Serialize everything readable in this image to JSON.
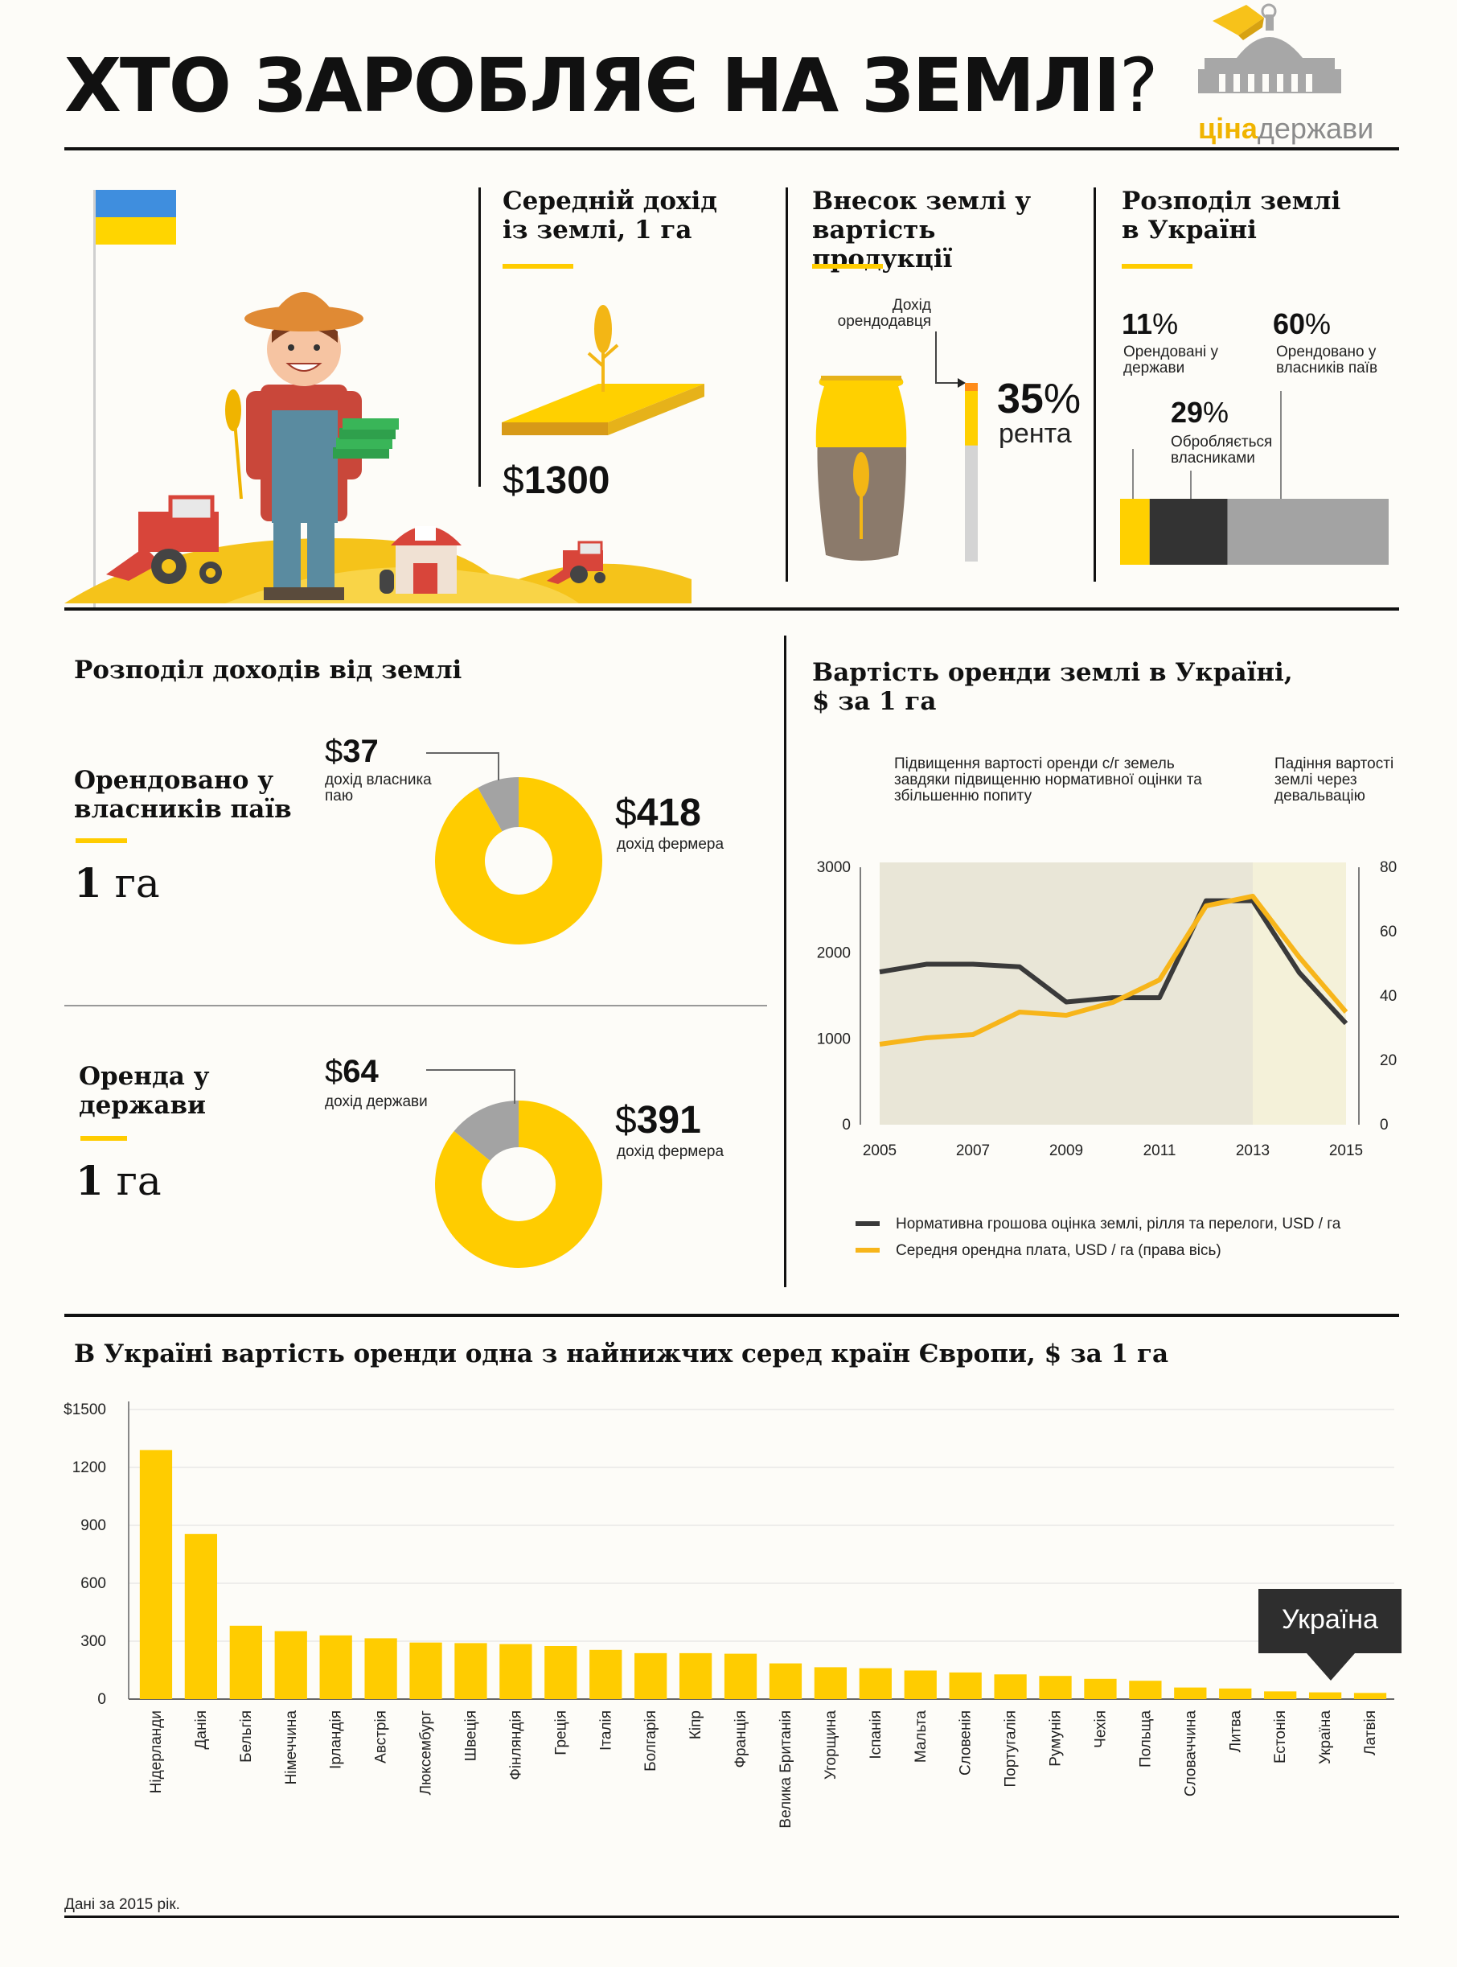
{
  "header": {
    "title_main": "ХТО ЗАРОБЛЯЄ НА ЗЕМЛІ",
    "title_q": "?",
    "logo_bold": "ціна",
    "logo_light": "держави"
  },
  "avg_income": {
    "title": "Середній дохід із землі, 1 га",
    "value_currency": "$",
    "value_number": "1300"
  },
  "land_share": {
    "title": "Внесок землі у вартість продукції",
    "caption": "Дохід орендодавця",
    "percent_number": "35",
    "percent_sign": "%",
    "percent_label": "рента",
    "value": 35
  },
  "land_distribution": {
    "title": "Розподіл землі в Україні",
    "items": [
      {
        "number": "11",
        "sign": "%",
        "label": "Орендовані у держави",
        "value": 11,
        "color": "#ffd000"
      },
      {
        "number": "29",
        "sign": "%",
        "label": "Обробляється власниками",
        "value": 29,
        "color": "#333333"
      },
      {
        "number": "60",
        "sign": "%",
        "label": "Орендовано у власників паїв",
        "value": 60,
        "color": "#a3a3a3"
      }
    ]
  },
  "income_split": {
    "title": "Розподіл доходів від землі",
    "blocks": [
      {
        "heading": "Орендовано у власників паїв",
        "area_number": "1",
        "area_unit": "га",
        "small_currency": "$",
        "small_number": "37",
        "small_label": "дохід власника паю",
        "big_currency": "$",
        "big_number": "418",
        "big_label": "дохід фермера",
        "small_value": 37,
        "big_value": 418
      },
      {
        "heading": "Оренда у держави",
        "area_number": "1",
        "area_unit": "га",
        "small_currency": "$",
        "small_number": "64",
        "small_label": "дохід держави",
        "big_currency": "$",
        "big_number": "391",
        "big_label": "дохід фермера",
        "small_value": 64,
        "big_value": 391
      }
    ]
  },
  "rent_cost": {
    "title": "Вартість оренди землі в Україні, $ за 1 га",
    "note_rise": "Підвищення вартості оренди с/г земель завдяки підвищенню нормативної оцінки та збільшенню попиту",
    "note_fall": "Падіння вартості землі через девальвацію",
    "legend": [
      {
        "label": "Нормативна грошова оцінка землі, рілля та перелоги, USD / га",
        "color": "#3a3a3a"
      },
      {
        "label": "Середня орендна плата, USD / га (права вісь)",
        "color": "#f7b51a"
      }
    ]
  },
  "europe": {
    "title": "В Україні вартість оренди одна з найнижчих серед країн Європи, $ за 1 га",
    "callout": "Україна",
    "footnote": "Дані за 2015 рік."
  },
  "chart_data": [
    {
      "type": "line",
      "title": "Вартість оренди землі в Україні, $ за 1 га",
      "x": [
        2005,
        2006,
        2007,
        2008,
        2009,
        2010,
        2011,
        2012,
        2013,
        2014,
        2015
      ],
      "x_ticks": [
        "2005",
        "2007",
        "2009",
        "2011",
        "2013",
        "2015"
      ],
      "ylim": [
        0,
        3000
      ],
      "y_ticks": [
        "0",
        "1000",
        "2000",
        "3000"
      ],
      "y2lim": [
        0,
        80
      ],
      "y2_ticks": [
        "0",
        "20",
        "40",
        "60",
        "80"
      ],
      "shaded_ranges": [
        [
          2005,
          2013
        ],
        [
          2013,
          2015
        ]
      ],
      "series": [
        {
          "name": "Нормативна грошова оцінка землі, рілля та перелоги, USD / га",
          "axis": "left",
          "color": "#3a3a3a",
          "values": [
            1780,
            1870,
            1870,
            1840,
            1430,
            1480,
            1480,
            2610,
            2610,
            1770,
            1180
          ]
        },
        {
          "name": "Середня орендна плата, USD / га (права вісь)",
          "axis": "right",
          "color": "#f7b51a",
          "values": [
            25,
            27,
            28,
            35,
            34,
            38,
            45,
            68,
            71,
            52,
            35
          ]
        }
      ],
      "grid": false
    },
    {
      "type": "bar",
      "title": "В Україні вартість оренди одна з найнижчих серед країн Європи, $ за 1 га",
      "categories": [
        "Нідерланди",
        "Данія",
        "Бельгія",
        "Німеччина",
        "Ірландія",
        "Австрія",
        "Люксембург",
        "Швеція",
        "Фінляндія",
        "Греція",
        "Італія",
        "Болгарія",
        "Кіпр",
        "Франція",
        "Велика Британія",
        "Угорщина",
        "Іспанія",
        "Мальта",
        "Словенія",
        "Португалія",
        "Румунія",
        "Чехія",
        "Польща",
        "Словаччина",
        "Литва",
        "Естонія",
        "Україна",
        "Латвія"
      ],
      "values": [
        1290,
        855,
        380,
        352,
        330,
        315,
        293,
        290,
        285,
        275,
        255,
        238,
        238,
        235,
        185,
        165,
        160,
        148,
        138,
        128,
        120,
        105,
        95,
        60,
        55,
        40,
        35,
        32
      ],
      "ylim": [
        0,
        1500
      ],
      "y_ticks": [
        "0",
        "300",
        "600",
        "900",
        "1200",
        "$1500"
      ],
      "grid": true,
      "highlight": "Україна"
    }
  ]
}
